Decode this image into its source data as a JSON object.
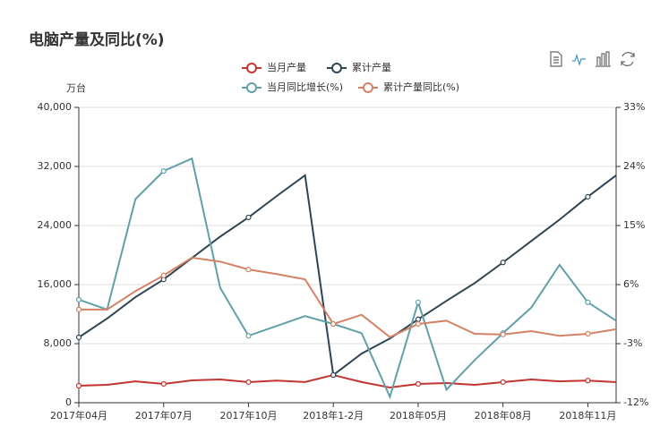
{
  "chart_data": {
    "type": "line",
    "title": "电脑产量及同比(%)",
    "y_label": "万台",
    "categories": [
      "2017年04月",
      null,
      null,
      "2017年07月",
      null,
      null,
      "2017年10月",
      null,
      null,
      "2018年1-2月",
      null,
      null,
      "2018年05月",
      null,
      null,
      "2018年08月",
      null,
      null,
      "2018年11月",
      null
    ],
    "series": [
      {
        "name": "当月产量",
        "color": "#c23531",
        "values": [
          2300,
          2420,
          2900,
          2550,
          3030,
          3150,
          2790,
          3000,
          2800,
          3750,
          2800,
          2060,
          2550,
          2670,
          2420,
          2790,
          3150,
          2900,
          3000,
          2790
        ]
      },
      {
        "name": "累计产量",
        "color": "#2f4554",
        "values": [
          8850,
          11400,
          14300,
          16700,
          19600,
          22500,
          25100,
          28000,
          30800,
          3750,
          6650,
          8700,
          11300,
          13800,
          16200,
          19000,
          21900,
          24800,
          27900,
          30800
        ]
      },
      {
        "name": "当月同比增长(%)",
        "color": "#61a0a8",
        "axis": "y2",
        "values": [
          3.7,
          2.2,
          19.0,
          23.3,
          25.2,
          5.5,
          -1.8,
          -0.3,
          1.2,
          0.0,
          -1.4,
          -11.1,
          3.3,
          -10.0,
          -5.5,
          -1.4,
          2.5,
          9.0,
          3.3,
          0.5
        ]
      },
      {
        "name": "累计产量同比(%)",
        "color": "#d48265",
        "axis": "y2",
        "values": [
          2.2,
          2.2,
          5.0,
          7.4,
          10.1,
          9.5,
          8.3,
          7.6,
          6.8,
          0.0,
          1.4,
          -2.0,
          0.0,
          0.5,
          -1.5,
          -1.6,
          -1.1,
          -1.8,
          -1.5,
          -0.8
        ]
      }
    ],
    "ylim": [
      0,
      40000
    ],
    "yticks": [
      0,
      {
        "value": 8000,
        "label": "8,000"
      },
      {
        "value": 16000,
        "label": "16,000"
      },
      {
        "value": 24000,
        "label": "24,000"
      },
      {
        "value": 32000,
        "label": "32,000"
      },
      {
        "value": 40000,
        "label": "40,000"
      }
    ],
    "y2lim": [
      -12,
      33
    ],
    "y2ticks": [
      {
        "value": -12,
        "label": "-12%"
      },
      {
        "value": -3,
        "label": "-3%"
      },
      {
        "value": 6,
        "label": "6%"
      },
      {
        "value": 15,
        "label": "15%"
      },
      {
        "value": 24,
        "label": "24%"
      },
      {
        "value": 33,
        "label": "33%"
      }
    ],
    "grid": true
  }
}
